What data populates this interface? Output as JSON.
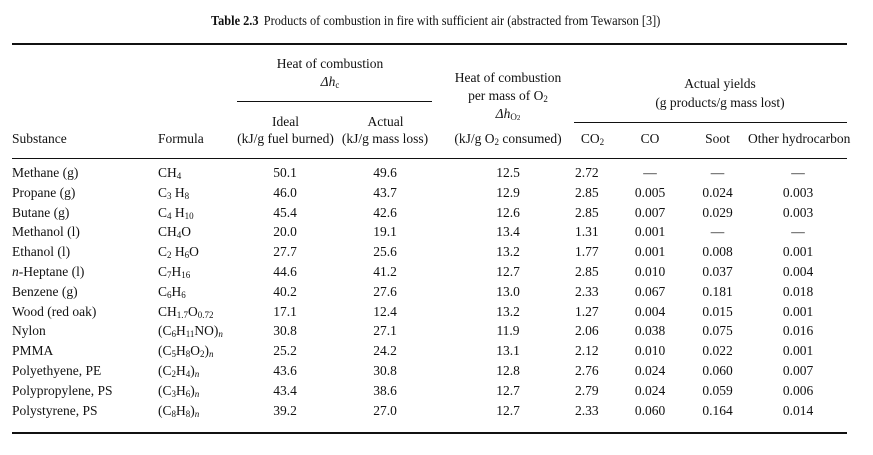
{
  "table": {
    "label": "Table 2.3",
    "caption": "Products of combustion in fire with sufficient air (abstracted from Tewarson [3])",
    "headers": {
      "heat_of_combustion": "Heat of combustion",
      "delta_hc": "Δh",
      "delta_hc_sub": "c",
      "ideal": "Ideal",
      "ideal_unit": "(kJ/g fuel burned)",
      "actual": "Actual",
      "actual_unit": "(kJ/g mass loss)",
      "heat_per_o2_line1": "Heat of combustion",
      "heat_per_o2_line2": "per mass of O",
      "heat_per_o2_line2_sub": "2",
      "delta_ho2": "Δh",
      "delta_ho2_sub": "O",
      "delta_ho2_subsub": "2",
      "o2_unit_pre": "(kJ/g O",
      "o2_unit_sub": "2",
      "o2_unit_post": " consumed)",
      "actual_yields": "Actual yields",
      "yields_unit": "(g products/g mass lost)",
      "substance": "Substance",
      "formula": "Formula",
      "co2": "CO",
      "co2_sub": "2",
      "co": "CO",
      "soot": "Soot",
      "other": "Other hydrocarbon"
    },
    "rows": [
      {
        "substance": "Methane (g)",
        "formula_html": "CH<sub>4</sub>",
        "ideal": "50.1",
        "actual": "49.6",
        "o2": "12.5",
        "co2": "2.72",
        "co": "—",
        "soot": "—",
        "other": "—"
      },
      {
        "substance": "Propane (g)",
        "formula_html": "C<sub>3</sub> H<sub>8</sub>",
        "ideal": "46.0",
        "actual": "43.7",
        "o2": "12.9",
        "co2": "2.85",
        "co": "0.005",
        "soot": "0.024",
        "other": "0.003"
      },
      {
        "substance": "Butane (g)",
        "formula_html": "C<sub>4</sub> H<sub>10</sub>",
        "ideal": "45.4",
        "actual": "42.6",
        "o2": "12.6",
        "co2": "2.85",
        "co": "0.007",
        "soot": "0.029",
        "other": "0.003"
      },
      {
        "substance": "Methanol (l)",
        "formula_html": "CH<sub>4</sub>O",
        "ideal": "20.0",
        "actual": "19.1",
        "o2": "13.4",
        "co2": "1.31",
        "co": "0.001",
        "soot": "—",
        "other": "—"
      },
      {
        "substance": "Ethanol (l)",
        "formula_html": "C<sub>2</sub> H<sub>6</sub>O",
        "ideal": "27.7",
        "actual": "25.6",
        "o2": "13.2",
        "co2": "1.77",
        "co": "0.001",
        "soot": "0.008",
        "other": "0.001"
      },
      {
        "substance_html": "<span class=\"it\">n</span>-Heptane (l)",
        "substance": "n-Heptane (l)",
        "formula_html": "C<sub>7</sub>H<sub>16</sub>",
        "ideal": "44.6",
        "actual": "41.2",
        "o2": "12.7",
        "co2": "2.85",
        "co": "0.010",
        "soot": "0.037",
        "other": "0.004"
      },
      {
        "substance": "Benzene (g)",
        "formula_html": "C<sub>6</sub>H<sub>6</sub>",
        "ideal": "40.2",
        "actual": "27.6",
        "o2": "13.0",
        "co2": "2.33",
        "co": "0.067",
        "soot": "0.181",
        "other": "0.018"
      },
      {
        "substance": "Wood (red oak)",
        "formula_html": "CH<sub>1.7</sub>O<sub>0.72</sub>",
        "ideal": "17.1",
        "actual": "12.4",
        "o2": "13.2",
        "co2": "1.27",
        "co": "0.004",
        "soot": "0.015",
        "other": "0.001"
      },
      {
        "substance": "Nylon",
        "formula_html": "(C<sub>6</sub>H<sub>11</sub>NO)<sub><span class=\"it\">n</span></sub>",
        "ideal": "30.8",
        "actual": "27.1",
        "o2": "11.9",
        "co2": "2.06",
        "co": "0.038",
        "soot": "0.075",
        "other": "0.016"
      },
      {
        "substance": "PMMA",
        "formula_html": "(C<sub>5</sub>H<sub>8</sub>O<sub>2</sub>)<sub><span class=\"it\">n</span></sub>",
        "ideal": "25.2",
        "actual": "24.2",
        "o2": "13.1",
        "co2": "2.12",
        "co": "0.010",
        "soot": "0.022",
        "other": "0.001"
      },
      {
        "substance": "Polyethyene, PE",
        "formula_html": "(C<sub>2</sub>H<sub>4</sub>)<sub><span class=\"it\">n</span></sub>",
        "ideal": "43.6",
        "actual": "30.8",
        "o2": "12.8",
        "co2": "2.76",
        "co": "0.024",
        "soot": "0.060",
        "other": "0.007"
      },
      {
        "substance": "Polypropylene, PS",
        "formula_html": "(C<sub>3</sub>H<sub>6</sub>)<sub><span class=\"it\">n</span></sub>",
        "ideal": "43.4",
        "actual": "38.6",
        "o2": "12.7",
        "co2": "2.79",
        "co": "0.024",
        "soot": "0.059",
        "other": "0.006"
      },
      {
        "substance": "Polystyrene, PS",
        "formula_html": "(C<sub>8</sub>H<sub>8</sub>)<sub><span class=\"it\">n</span></sub>",
        "ideal": "39.2",
        "actual": "27.0",
        "o2": "12.7",
        "co2": "2.33",
        "co": "0.060",
        "soot": "0.164",
        "other": "0.014"
      }
    ]
  }
}
